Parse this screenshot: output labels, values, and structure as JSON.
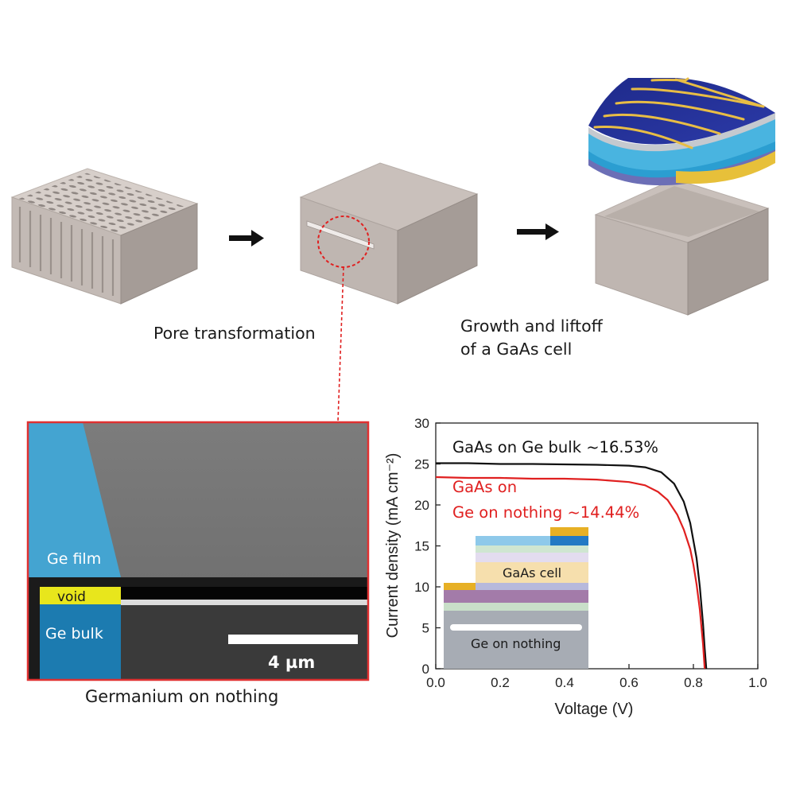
{
  "process": {
    "step1_caption": "Pore transformation",
    "step2_caption_line1": "Growth and liftoff",
    "step2_caption_line2": "of a GaAs cell"
  },
  "sem": {
    "film_label": "Ge film",
    "void_label": "void",
    "bulk_label": "Ge bulk",
    "scalebar_label": "4 µm",
    "caption": "Germanium on nothing",
    "colors": {
      "frame": "#e03131",
      "film": "#41a6d6",
      "bulk": "#1c7bb0",
      "void": "#e8e61c"
    }
  },
  "inset": {
    "cell_label": "GaAs cell",
    "substrate_label": "Ge on nothing"
  },
  "chart_data": {
    "type": "line",
    "xlabel": "Voltage (V)",
    "ylabel": "Current density (mA cm⁻²)",
    "xlim": [
      0.0,
      1.0
    ],
    "ylim": [
      0,
      30
    ],
    "xticks": [
      "0.0",
      "0.2",
      "0.4",
      "0.6",
      "0.8",
      "1.0"
    ],
    "yticks": [
      "0",
      "5",
      "10",
      "15",
      "20",
      "25",
      "30"
    ],
    "grid": false,
    "series": [
      {
        "name": "GaAs on Ge bulk ~16.53%",
        "color": "#111111",
        "x": [
          0.0,
          0.1,
          0.2,
          0.3,
          0.4,
          0.5,
          0.6,
          0.65,
          0.7,
          0.74,
          0.77,
          0.79,
          0.81,
          0.82,
          0.83,
          0.835,
          0.84
        ],
        "y": [
          25.1,
          25.1,
          25.0,
          25.0,
          24.95,
          24.9,
          24.8,
          24.6,
          24.0,
          22.6,
          20.4,
          17.8,
          13.5,
          10.0,
          5.5,
          2.5,
          0.0
        ]
      },
      {
        "name_line1": "GaAs on",
        "name_line2": "Ge on nothing ~14.44%",
        "color": "#e02020",
        "x": [
          0.0,
          0.1,
          0.2,
          0.3,
          0.4,
          0.5,
          0.6,
          0.65,
          0.69,
          0.72,
          0.75,
          0.77,
          0.79,
          0.8,
          0.81,
          0.82,
          0.83,
          0.835
        ],
        "y": [
          23.4,
          23.3,
          23.3,
          23.2,
          23.2,
          23.1,
          22.8,
          22.4,
          21.6,
          20.6,
          18.8,
          17.0,
          14.6,
          12.7,
          10.3,
          7.2,
          3.0,
          0.0
        ]
      }
    ]
  }
}
